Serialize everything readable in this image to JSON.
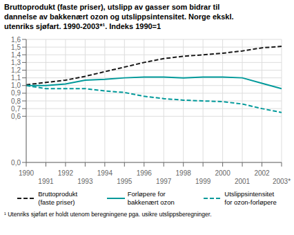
{
  "chart_data": {
    "type": "line",
    "title": "Bruttoprodukt (faste priser), utslipp av gasser som bidrar til\ndannelse av bakkenært ozon og utslippsintensitet. Norge ekskl.\nutenriks sjøfart. 1990-2003*¹. Indeks 1990=1",
    "footnote": "¹ Utenriks sjøfart er holdt utenom beregningene pga. usikre utslippsberegninger.",
    "x": [
      1990,
      1991,
      1992,
      1993,
      1994,
      1995,
      1996,
      1997,
      1998,
      1999,
      2000,
      2001,
      2002,
      2003
    ],
    "xlim": [
      1990,
      2003
    ],
    "xticks": [
      1990,
      1991,
      1992,
      1993,
      1994,
      1995,
      1996,
      1997,
      1998,
      1999,
      2000,
      2001,
      2002,
      {
        "value": 2003,
        "label": "2003*"
      }
    ],
    "ylim": [
      0.0,
      1.6
    ],
    "yticks": [
      {
        "value": 0.0,
        "label": "0,0"
      },
      {
        "value": 0.6,
        "label": "0,6"
      },
      {
        "value": 0.7,
        "label": "0,7"
      },
      {
        "value": 0.8,
        "label": "0,8"
      },
      {
        "value": 0.9,
        "label": "0,9"
      },
      {
        "value": 1.0,
        "label": "1,0"
      },
      {
        "value": 1.1,
        "label": "1,1"
      },
      {
        "value": 1.2,
        "label": "1,2"
      },
      {
        "value": 1.3,
        "label": "1,3"
      },
      {
        "value": 1.4,
        "label": "1,4"
      },
      {
        "value": 1.5,
        "label": "1,5"
      },
      {
        "value": 1.6,
        "label": "1,6"
      }
    ],
    "series": [
      {
        "name": "Bruttoprodukt\n(faste priser)",
        "color": "#1a1a1a",
        "line_style": "dashed",
        "values": [
          1.01,
          1.04,
          1.07,
          1.12,
          1.18,
          1.24,
          1.3,
          1.35,
          1.38,
          1.4,
          1.42,
          1.45,
          1.49,
          1.51
        ]
      },
      {
        "name": "Forløpere for\nbakkenært ozon",
        "color": "#00999A",
        "line_style": "solid",
        "values": [
          1.0,
          1.0,
          1.02,
          1.07,
          1.08,
          1.1,
          1.11,
          1.11,
          1.1,
          1.11,
          1.11,
          1.1,
          1.03,
          0.96
        ]
      },
      {
        "name": "Utslippsintensitet\nfor ozon-forløpere",
        "color": "#00999A",
        "line_style": "dashed",
        "values": [
          1.0,
          0.96,
          0.96,
          0.96,
          0.93,
          0.91,
          0.86,
          0.83,
          0.81,
          0.8,
          0.79,
          0.76,
          0.7,
          0.65
        ]
      }
    ],
    "grid": true,
    "legend": "bottom"
  }
}
